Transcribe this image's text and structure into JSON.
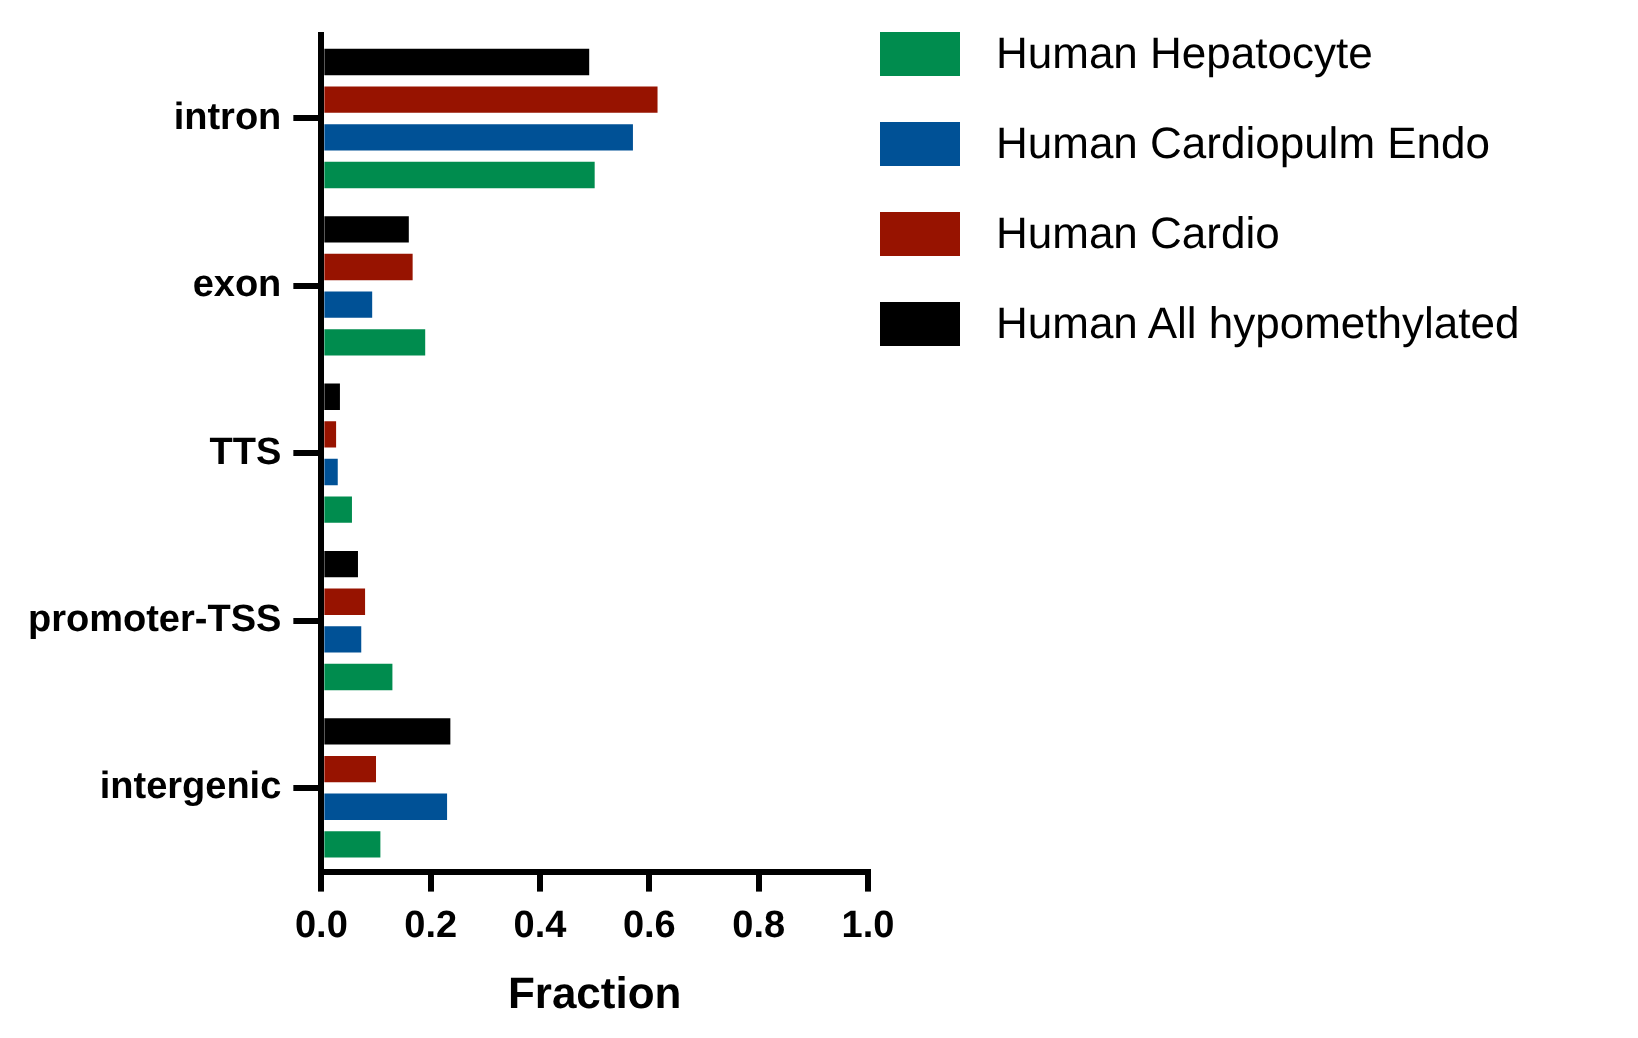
{
  "chart_data": {
    "type": "bar",
    "orientation": "horizontal",
    "xlabel": "Fraction",
    "categories": [
      "intron",
      "exon",
      "TTS",
      "promoter-TSS",
      "intergenic"
    ],
    "series": [
      {
        "name": "Human Hepatocyte",
        "color": "#008c4e",
        "values": [
          0.5,
          0.19,
          0.056,
          0.13,
          0.108
        ]
      },
      {
        "name": "Human Cardiopulm Endo",
        "color": "#005196",
        "values": [
          0.57,
          0.093,
          0.03,
          0.073,
          0.23
        ]
      },
      {
        "name": "Human Cardio",
        "color": "#971300",
        "values": [
          0.615,
          0.167,
          0.027,
          0.08,
          0.1
        ]
      },
      {
        "name": "Human All hypomethylated",
        "color": "#000000",
        "values": [
          0.49,
          0.16,
          0.034,
          0.067,
          0.236
        ]
      }
    ],
    "xlim": [
      0,
      1
    ],
    "xticks": [
      {
        "value": 0,
        "label": "0.0"
      },
      {
        "value": 0.2,
        "label": "0.2"
      },
      {
        "value": 0.4,
        "label": "0.4"
      },
      {
        "value": 0.6,
        "label": "0.6"
      },
      {
        "value": 0.8,
        "label": "0.8"
      },
      {
        "value": 1,
        "label": "1.0"
      }
    ],
    "grid": false,
    "legend": "top right"
  }
}
